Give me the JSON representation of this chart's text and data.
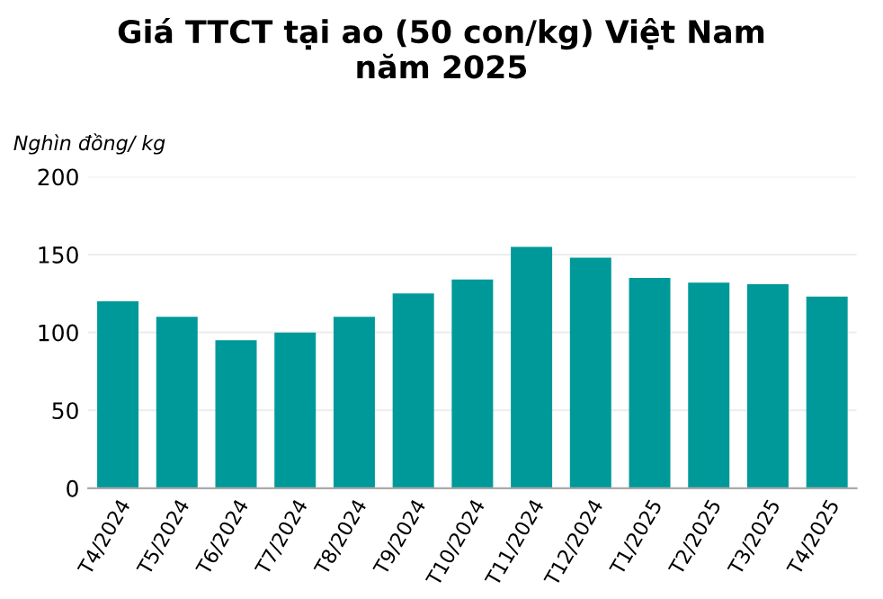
{
  "chart_data": {
    "type": "bar",
    "title": "Giá TTCT tại ao (50 con/kg) Việt Nam\nnăm 2025",
    "ylabel": "Nghìn đồng/ kg",
    "categories": [
      "T4/2024",
      "T5/2024",
      "T6/2024",
      "T7/2024",
      "T8/2024",
      "T9/2024",
      "T10/2024",
      "T11/2024",
      "T12/2024",
      "T1/2025",
      "T2/2025",
      "T3/2025",
      "T4/2025"
    ],
    "values": [
      120,
      110,
      95,
      100,
      110,
      125,
      134,
      155,
      148,
      135,
      132,
      131,
      123
    ],
    "color": "#00999a",
    "ylim": [
      0,
      200
    ],
    "yticks": [
      0,
      50,
      100,
      150,
      200
    ],
    "grid": "y"
  }
}
